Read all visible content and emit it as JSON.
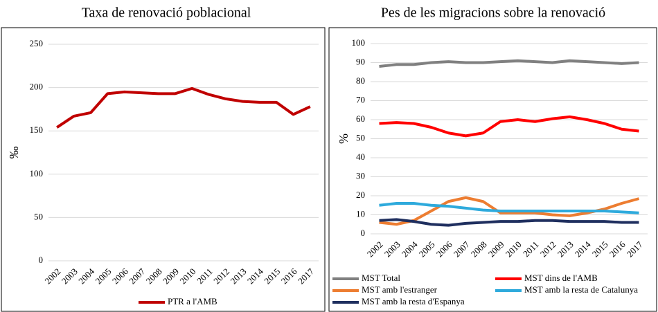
{
  "chart_data": [
    {
      "type": "line",
      "title": "Taxa de renovació poblacional",
      "y_label": "‰",
      "categories": [
        "2002",
        "2003",
        "2004",
        "2005",
        "2006",
        "2007",
        "2008",
        "2009",
        "2010",
        "2011",
        "2012",
        "2013",
        "2014",
        "2015",
        "2016",
        "2017"
      ],
      "series": [
        {
          "name": "PTR a l'AMB",
          "color": "#c00000",
          "values": [
            154,
            167,
            171,
            193,
            195,
            194,
            193,
            193,
            199,
            192,
            187,
            184,
            183,
            183,
            169,
            178
          ]
        }
      ],
      "ylim": [
        0,
        250
      ],
      "yticks": [
        0,
        50,
        100,
        150,
        200,
        250
      ],
      "grid": true,
      "legend": "bottom"
    },
    {
      "type": "line",
      "title": "Pes de les migracions sobre la renovació",
      "y_label": "%",
      "categories": [
        "2002",
        "2003",
        "2004",
        "2005",
        "2006",
        "2007",
        "2008",
        "2009",
        "2010",
        "2011",
        "2012",
        "2013",
        "2014",
        "2015",
        "2016",
        "2017"
      ],
      "series": [
        {
          "name": "MST Total",
          "color": "#808080",
          "values": [
            88,
            89,
            89,
            90,
            90.5,
            90,
            90,
            90.5,
            91,
            90.5,
            90,
            91,
            90.5,
            90,
            89.5,
            90
          ]
        },
        {
          "name": "MST dins de l'AMB",
          "color": "#ff0000",
          "values": [
            58,
            58.5,
            58,
            56,
            53,
            51.5,
            53,
            59,
            60,
            59,
            60.5,
            61.5,
            60,
            58,
            55,
            54
          ]
        },
        {
          "name": "MST amb l'estranger",
          "color": "#ed7d31",
          "values": [
            6,
            5,
            7,
            12,
            17,
            19,
            17,
            11,
            11,
            11,
            10,
            9.5,
            11,
            13,
            16,
            18.5
          ]
        },
        {
          "name": "MST amb la resta de Catalunya",
          "color": "#2eaadc",
          "values": [
            15,
            16,
            16,
            15,
            14.5,
            13.5,
            12.5,
            12,
            12,
            12,
            12,
            12,
            12,
            12,
            11.5,
            11
          ]
        },
        {
          "name": "MST amb la resta d'Espanya",
          "color": "#1f2f5f",
          "values": [
            7,
            7.5,
            6.5,
            5,
            4.5,
            5.5,
            6,
            6.5,
            6.5,
            7,
            7,
            6.5,
            6.5,
            6.5,
            6,
            6
          ]
        }
      ],
      "ylim": [
        0,
        100
      ],
      "yticks": [
        0,
        10,
        20,
        30,
        40,
        50,
        60,
        70,
        80,
        90,
        100
      ],
      "grid": true,
      "legend": "bottom"
    }
  ]
}
